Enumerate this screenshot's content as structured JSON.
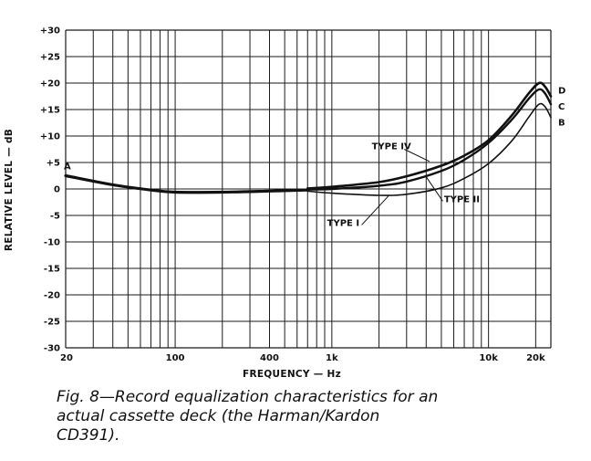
{
  "caption": "Fig. 8—Record equalization characteristics for an actual cassette deck (the Harman/Kardon CD391).",
  "chart_data": {
    "type": "line",
    "title": "",
    "xlabel": "FREQUENCY — Hz",
    "ylabel": "RELATIVE LEVEL — dB",
    "x_scale": "log",
    "xlim": [
      20,
      25000
    ],
    "ylim": [
      -30,
      30
    ],
    "grid": true,
    "y_ticks": [
      {
        "value": 30,
        "label": "+30"
      },
      {
        "value": 25,
        "label": "+25"
      },
      {
        "value": 20,
        "label": "+20"
      },
      {
        "value": 15,
        "label": "+15"
      },
      {
        "value": 10,
        "label": "+10"
      },
      {
        "value": 5,
        "label": "+5"
      },
      {
        "value": 0,
        "label": "0"
      },
      {
        "value": -5,
        "label": "-5"
      },
      {
        "value": -10,
        "label": "-10"
      },
      {
        "value": -15,
        "label": "-15"
      },
      {
        "value": -20,
        "label": "-20"
      },
      {
        "value": -25,
        "label": "-25"
      },
      {
        "value": -30,
        "label": "-30"
      }
    ],
    "x_ticks": [
      {
        "value": 20,
        "label": "20"
      },
      {
        "value": 100,
        "label": "100"
      },
      {
        "value": 400,
        "label": "400"
      },
      {
        "value": 1000,
        "label": "1k"
      },
      {
        "value": 10000,
        "label": "10k"
      },
      {
        "value": 20000,
        "label": "20k"
      }
    ],
    "series": [
      {
        "name": "A",
        "x": [
          20,
          40,
          70,
          100,
          200,
          400,
          700
        ],
        "y": [
          2.5,
          0.8,
          -0.2,
          -0.6,
          -0.6,
          -0.4,
          -0.2
        ]
      },
      {
        "name": "TYPE I",
        "x": [
          700,
          1000,
          2000,
          3000,
          5000,
          7000,
          10000,
          14000,
          18000,
          21000,
          23000,
          25000
        ],
        "y": [
          -0.4,
          -0.8,
          -1.2,
          -1.0,
          0.2,
          2.0,
          4.8,
          9.0,
          13.5,
          16.0,
          15.5,
          13.5
        ]
      },
      {
        "name": "TYPE II",
        "x": [
          700,
          1000,
          2000,
          3000,
          5000,
          7000,
          10000,
          14000,
          18000,
          21000,
          23000,
          25000
        ],
        "y": [
          -0.1,
          0.0,
          0.6,
          1.4,
          3.4,
          5.5,
          8.7,
          13.0,
          17.0,
          18.8,
          18.0,
          16.0
        ]
      },
      {
        "name": "TYPE IV",
        "x": [
          700,
          1000,
          2000,
          3000,
          5000,
          7000,
          10000,
          14000,
          18000,
          21000,
          23000,
          25000
        ],
        "y": [
          0.1,
          0.4,
          1.3,
          2.4,
          4.4,
          6.3,
          9.2,
          13.8,
          18.0,
          20.0,
          19.3,
          17.5
        ]
      }
    ],
    "annotations": [
      {
        "text": "A",
        "x": 20,
        "y": 3
      },
      {
        "text": "TYPE IV",
        "x": 2400,
        "y": 7.5
      },
      {
        "text": "TYPE II",
        "x": 5200,
        "y": -2.5
      },
      {
        "text": "TYPE I",
        "x": 1500,
        "y": -7
      },
      {
        "text": "D",
        "x": 25000,
        "y": 18
      },
      {
        "text": "C",
        "x": 25000,
        "y": 15
      },
      {
        "text": "B",
        "x": 25000,
        "y": 12
      }
    ]
  }
}
